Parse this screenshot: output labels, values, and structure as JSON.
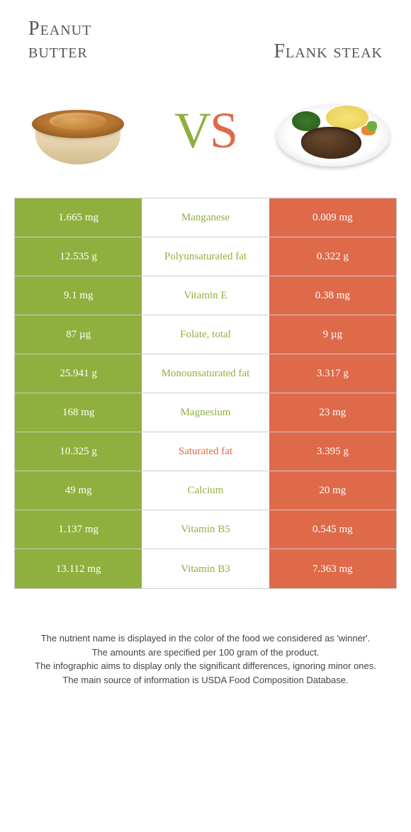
{
  "colors": {
    "left": "#8fb03e",
    "right": "#de6a4a",
    "mid_bg": "#ffffff",
    "border": "#cccccc",
    "text_white": "#ffffff",
    "footer_text": "#444444"
  },
  "fontsizes": {
    "title": 28,
    "vs": 72,
    "cell": 15,
    "footer": 13
  },
  "header": {
    "left_line1": "Peanut",
    "left_line2": "butter",
    "right": "Flank steak"
  },
  "vs": {
    "v": "V",
    "s": "S"
  },
  "rows": [
    {
      "left": "1.665 mg",
      "mid": "Manganese",
      "right": "0.009 mg",
      "winner": "left"
    },
    {
      "left": "12.535 g",
      "mid": "Polyunsaturated fat",
      "right": "0.322 g",
      "winner": "left"
    },
    {
      "left": "9.1 mg",
      "mid": "Vitamin E",
      "right": "0.38 mg",
      "winner": "left"
    },
    {
      "left": "87 µg",
      "mid": "Folate, total",
      "right": "9 µg",
      "winner": "left"
    },
    {
      "left": "25.941 g",
      "mid": "Monounsaturated fat",
      "right": "3.317 g",
      "winner": "left"
    },
    {
      "left": "168 mg",
      "mid": "Magnesium",
      "right": "23 mg",
      "winner": "left"
    },
    {
      "left": "10.325 g",
      "mid": "Saturated fat",
      "right": "3.395 g",
      "winner": "right"
    },
    {
      "left": "49 mg",
      "mid": "Calcium",
      "right": "20 mg",
      "winner": "left"
    },
    {
      "left": "1.137 mg",
      "mid": "Vitamin B5",
      "right": "0.545 mg",
      "winner": "left"
    },
    {
      "left": "13.112 mg",
      "mid": "Vitamin B3",
      "right": "7.363 mg",
      "winner": "left"
    }
  ],
  "footer": {
    "line1": "The nutrient name is displayed in the color of the food we considered as 'winner'.",
    "line2": "The amounts are specified per 100 gram of the product.",
    "line3": "The infographic aims to display only the significant differences, ignoring minor ones.",
    "line4": "The main source of information is USDA Food Composition Database."
  }
}
